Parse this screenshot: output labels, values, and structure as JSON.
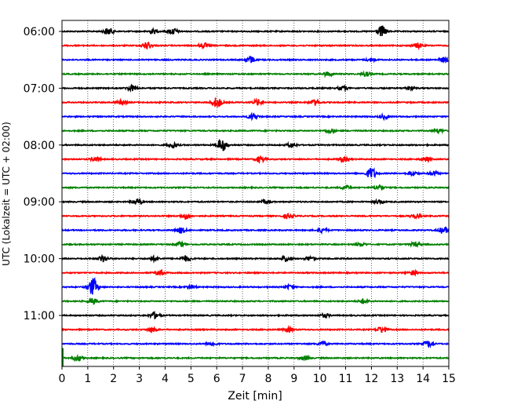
{
  "chart_data": {
    "type": "line",
    "title": "",
    "xlabel": "Zeit  [min]",
    "ylabel": "UTC (Lokalzeit = UTC + 02:00)",
    "xlim": [
      0,
      15
    ],
    "x_ticks": [
      "0",
      "1",
      "2",
      "3",
      "4",
      "5",
      "6",
      "7",
      "8",
      "9",
      "10",
      "11",
      "12",
      "13",
      "14",
      "15"
    ],
    "y_ticks": [
      "06:00",
      "07:00",
      "08:00",
      "09:00",
      "10:00",
      "11:00"
    ],
    "grid": "vertical dotted lines at each minute",
    "row_interval_minutes": 15,
    "row_count": 24,
    "colors": [
      "#000000",
      "#ff0000",
      "#0000ff",
      "#008000"
    ],
    "series": [
      {
        "start": "06:00",
        "color": "#000000",
        "events": [
          [
            1.8,
            1.0
          ],
          [
            3.5,
            0.6
          ],
          [
            4.3,
            0.9
          ],
          [
            12.4,
            1.6
          ]
        ]
      },
      {
        "start": "06:15",
        "color": "#ff0000",
        "events": [
          [
            3.3,
            1.0
          ],
          [
            5.5,
            0.7
          ],
          [
            13.8,
            0.7
          ]
        ]
      },
      {
        "start": "06:30",
        "color": "#0000ff",
        "events": [
          [
            7.3,
            1.0
          ],
          [
            12.0,
            0.5
          ],
          [
            14.8,
            0.7
          ]
        ]
      },
      {
        "start": "06:45",
        "color": "#008000",
        "events": [
          [
            10.3,
            0.6
          ],
          [
            11.8,
            0.6
          ]
        ]
      },
      {
        "start": "07:00",
        "color": "#000000",
        "events": [
          [
            2.7,
            0.8
          ],
          [
            10.9,
            0.6
          ],
          [
            13.5,
            0.5
          ]
        ]
      },
      {
        "start": "07:15",
        "color": "#ff0000",
        "events": [
          [
            2.3,
            0.6
          ],
          [
            6.0,
            1.5
          ],
          [
            7.6,
            0.8
          ],
          [
            9.8,
            0.8
          ]
        ]
      },
      {
        "start": "07:30",
        "color": "#0000ff",
        "events": [
          [
            7.4,
            0.8
          ],
          [
            12.5,
            0.6
          ]
        ]
      },
      {
        "start": "07:45",
        "color": "#008000",
        "events": [
          [
            10.4,
            0.6
          ],
          [
            14.6,
            0.5
          ]
        ]
      },
      {
        "start": "08:00",
        "color": "#000000",
        "events": [
          [
            4.3,
            0.8
          ],
          [
            6.2,
            1.8
          ],
          [
            8.9,
            0.6
          ]
        ]
      },
      {
        "start": "08:15",
        "color": "#ff0000",
        "events": [
          [
            1.3,
            0.6
          ],
          [
            7.7,
            0.8
          ],
          [
            10.9,
            0.6
          ],
          [
            14.1,
            0.6
          ]
        ]
      },
      {
        "start": "08:30",
        "color": "#0000ff",
        "events": [
          [
            12.0,
            1.6
          ],
          [
            13.6,
            0.6
          ],
          [
            14.4,
            0.6
          ]
        ]
      },
      {
        "start": "08:45",
        "color": "#008000",
        "events": [
          [
            12.3,
            0.8
          ],
          [
            11.0,
            0.5
          ]
        ]
      },
      {
        "start": "09:00",
        "color": "#000000",
        "events": [
          [
            2.9,
            1.0
          ],
          [
            7.9,
            0.5
          ],
          [
            12.3,
            0.5
          ]
        ]
      },
      {
        "start": "09:15",
        "color": "#ff0000",
        "events": [
          [
            4.8,
            0.8
          ],
          [
            8.8,
            0.6
          ],
          [
            13.7,
            0.6
          ]
        ]
      },
      {
        "start": "09:30",
        "color": "#0000ff",
        "events": [
          [
            4.6,
            0.8
          ],
          [
            10.1,
            0.6
          ],
          [
            14.8,
            1.0
          ]
        ]
      },
      {
        "start": "09:45",
        "color": "#008000",
        "events": [
          [
            4.6,
            0.6
          ],
          [
            11.6,
            0.5
          ],
          [
            13.7,
            0.6
          ]
        ]
      },
      {
        "start": "10:00",
        "color": "#000000",
        "events": [
          [
            1.6,
            0.9
          ],
          [
            3.6,
            0.6
          ],
          [
            4.8,
            0.8
          ],
          [
            8.7,
            0.8
          ],
          [
            9.6,
            0.6
          ]
        ]
      },
      {
        "start": "10:15",
        "color": "#ff0000",
        "events": [
          [
            3.8,
            0.7
          ],
          [
            13.6,
            0.6
          ]
        ]
      },
      {
        "start": "10:30",
        "color": "#0000ff",
        "events": [
          [
            1.2,
            2.5
          ],
          [
            5.0,
            0.5
          ],
          [
            8.8,
            0.5
          ]
        ]
      },
      {
        "start": "10:45",
        "color": "#008000",
        "events": [
          [
            1.2,
            0.8
          ],
          [
            11.7,
            0.7
          ]
        ]
      },
      {
        "start": "11:00",
        "color": "#000000",
        "events": [
          [
            3.6,
            0.9
          ],
          [
            10.2,
            0.5
          ]
        ]
      },
      {
        "start": "11:15",
        "color": "#ff0000",
        "events": [
          [
            3.5,
            0.7
          ],
          [
            8.8,
            0.6
          ],
          [
            12.4,
            0.9
          ]
        ]
      },
      {
        "start": "11:30",
        "color": "#0000ff",
        "events": [
          [
            5.8,
            0.6
          ],
          [
            10.1,
            0.6
          ],
          [
            14.2,
            0.8
          ]
        ]
      },
      {
        "start": "11:45",
        "color": "#008000",
        "events": [
          [
            0.6,
            0.8
          ],
          [
            9.4,
            0.6
          ]
        ]
      }
    ]
  }
}
